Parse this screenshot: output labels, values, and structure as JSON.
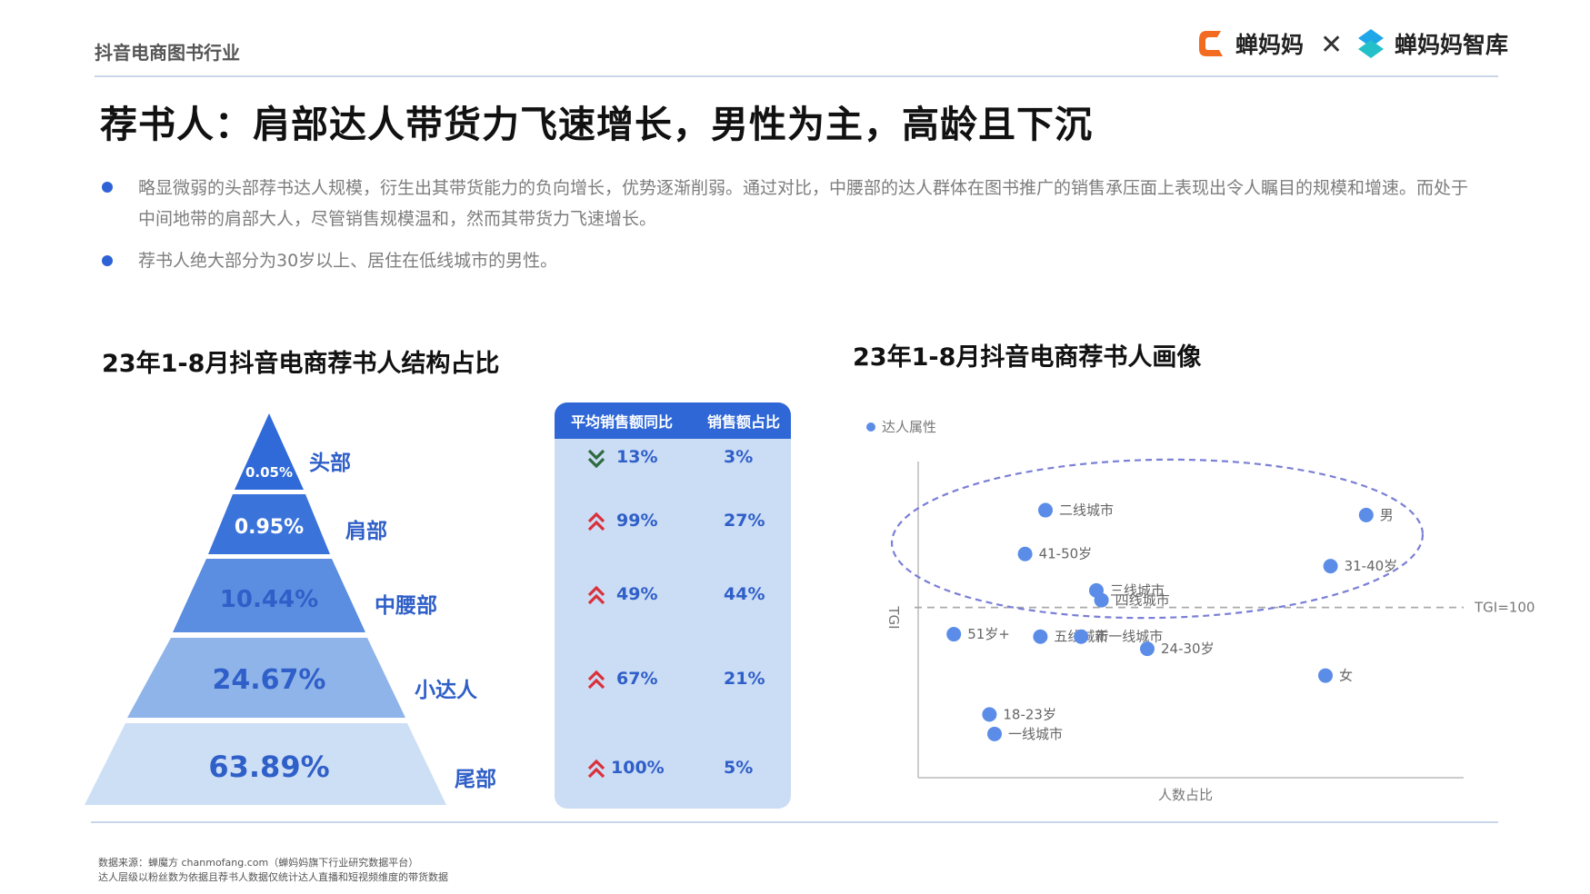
{
  "header": {
    "section": "抖音电商图书行业",
    "brand1": "蝉妈妈",
    "brand_sep": "✕",
    "brand2": "蝉妈妈智库"
  },
  "title": "荐书人：肩部达人带货力飞速增长，男性为主，高龄且下沉",
  "bullets": [
    "略显微弱的头部荐书达人规模，衍生出其带货能力的负向增长，优势逐渐削弱。通过对比，中腰部的达人群体在图书推广的销售承压面上表现出令人瞩目的规模和增速。而处于中间地带的肩部大人，尽管销售规模温和，然而其带货力飞速增长。",
    "荐书人绝大部分为30岁以上、居住在低线城市的男性。"
  ],
  "left_title": "23年1-8月抖音电商荐书人结构占比",
  "right_title": "23年1-8月抖音电商荐书人画像",
  "panel": {
    "col1": "平均销售额同比",
    "col2": "销售额占比"
  },
  "footer": {
    "line1": "数据来源：蝉魔方 chanmofang.com（蝉妈妈旗下行业研究数据平台）",
    "line2": "达人层级以粉丝数为依据且荐书人数据仅统计达人直播和短视频维度的带货数据"
  },
  "colors": {
    "accent": "#2f68d6",
    "text_blue": "#2f5fc8",
    "panel_bg": "#cbdcf5",
    "arrow_up": "#d9313b",
    "arrow_down": "#2e6b3f",
    "point": "#5b8de8",
    "ellipse": "#7a7fd6"
  },
  "chart_data": [
    {
      "type": "pyramid",
      "title": "23年1-8月抖音电商荐书人结构占比",
      "tiers": [
        {
          "name": "头部",
          "share": "0.05%",
          "value": 0.05,
          "avg_sales_yoy": "13%",
          "yoy_direction": "down",
          "sales_share": "3%"
        },
        {
          "name": "肩部",
          "share": "0.95%",
          "value": 0.95,
          "avg_sales_yoy": "99%",
          "yoy_direction": "up",
          "sales_share": "27%"
        },
        {
          "name": "中腰部",
          "share": "10.44%",
          "value": 10.44,
          "avg_sales_yoy": "49%",
          "yoy_direction": "up",
          "sales_share": "44%"
        },
        {
          "name": "小达人",
          "share": "24.67%",
          "value": 24.67,
          "avg_sales_yoy": "67%",
          "yoy_direction": "up",
          "sales_share": "21%"
        },
        {
          "name": "尾部",
          "share": "63.89%",
          "value": 63.89,
          "avg_sales_yoy": "100%",
          "yoy_direction": "up",
          "sales_share": "5%"
        }
      ]
    },
    {
      "type": "scatter",
      "title": "23年1-8月抖音电商荐书人画像",
      "legend": "达人属性",
      "xlabel": "人数占比",
      "ylabel": "TGI",
      "reference_line": {
        "label": "TGI=100",
        "y": 100
      },
      "points": [
        {
          "label": "二线城市",
          "x": 0.25,
          "y": 140
        },
        {
          "label": "男",
          "x": 0.88,
          "y": 138
        },
        {
          "label": "41-50岁",
          "x": 0.21,
          "y": 122
        },
        {
          "label": "31-40岁",
          "x": 0.81,
          "y": 117
        },
        {
          "label": "三线城市",
          "x": 0.35,
          "y": 107
        },
        {
          "label": "四线城市",
          "x": 0.36,
          "y": 103
        },
        {
          "label": "51岁+",
          "x": 0.07,
          "y": 89
        },
        {
          "label": "五线城市",
          "x": 0.24,
          "y": 88
        },
        {
          "label": "新一线城市",
          "x": 0.32,
          "y": 88
        },
        {
          "label": "24-30岁",
          "x": 0.45,
          "y": 83
        },
        {
          "label": "女",
          "x": 0.8,
          "y": 72
        },
        {
          "label": "18-23岁",
          "x": 0.14,
          "y": 56
        },
        {
          "label": "一线城市",
          "x": 0.15,
          "y": 48
        }
      ]
    }
  ]
}
